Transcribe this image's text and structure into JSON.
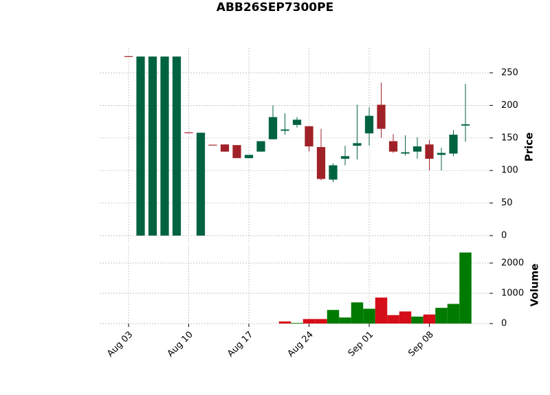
{
  "chart_data": {
    "type": "candlestick",
    "title": "ABB26SEP7300PE",
    "categories": [
      "Aug 03",
      null,
      null,
      null,
      null,
      "Aug 10",
      null,
      null,
      null,
      null,
      "Aug 17",
      null,
      null,
      null,
      null,
      "Aug 24",
      null,
      null,
      null,
      null,
      "Sep 01",
      null,
      null,
      null,
      null,
      "Sep 08",
      null,
      null,
      null
    ],
    "open": [
      275,
      0,
      0,
      0,
      0,
      158,
      0,
      139,
      140,
      139,
      119,
      129,
      148,
      161,
      170,
      168,
      136,
      86,
      118,
      138,
      157,
      201,
      145,
      126,
      129,
      140,
      124,
      126,
      169
    ],
    "high": [
      275,
      275,
      275,
      275,
      275,
      158,
      158,
      139,
      140,
      139,
      124,
      145,
      200,
      188,
      182,
      168,
      164,
      111,
      138,
      201,
      197,
      235,
      156,
      154,
      151,
      147,
      135,
      162,
      233
    ],
    "low": [
      275,
      0,
      0,
      0,
      0,
      158,
      0,
      139,
      129,
      119,
      119,
      129,
      148,
      155,
      166,
      129,
      85,
      82,
      108,
      117,
      138,
      150,
      127,
      123,
      118,
      100,
      100,
      122,
      144
    ],
    "close": [
      275,
      275,
      275,
      275,
      275,
      158,
      158,
      139,
      129,
      119,
      124,
      145,
      182,
      163,
      178,
      137,
      87,
      108,
      122,
      142,
      184,
      164,
      129,
      128,
      137,
      118,
      127,
      155,
      171
    ],
    "up_color": "#006340",
    "down_color": "#a02128",
    "xlim": [
      -2.4,
      30
    ],
    "ylabel": "Price",
    "ylim": [
      -12.7,
      288
    ],
    "yticks": [
      0,
      50,
      100,
      150,
      200,
      250
    ],
    "grid": true,
    "volume": {
      "label": "Volume",
      "values": [
        0,
        0,
        0,
        0,
        0,
        0,
        0,
        0,
        0,
        0,
        0,
        0,
        0,
        70,
        20,
        150,
        150,
        450,
        200,
        700,
        490,
        860,
        280,
        400,
        230,
        300,
        520,
        650,
        2350
      ],
      "up_color": "#007a00",
      "down_color": "#d50d18",
      "ylim": [
        0,
        2568
      ],
      "yticks": [
        0,
        1000,
        2000
      ]
    }
  }
}
